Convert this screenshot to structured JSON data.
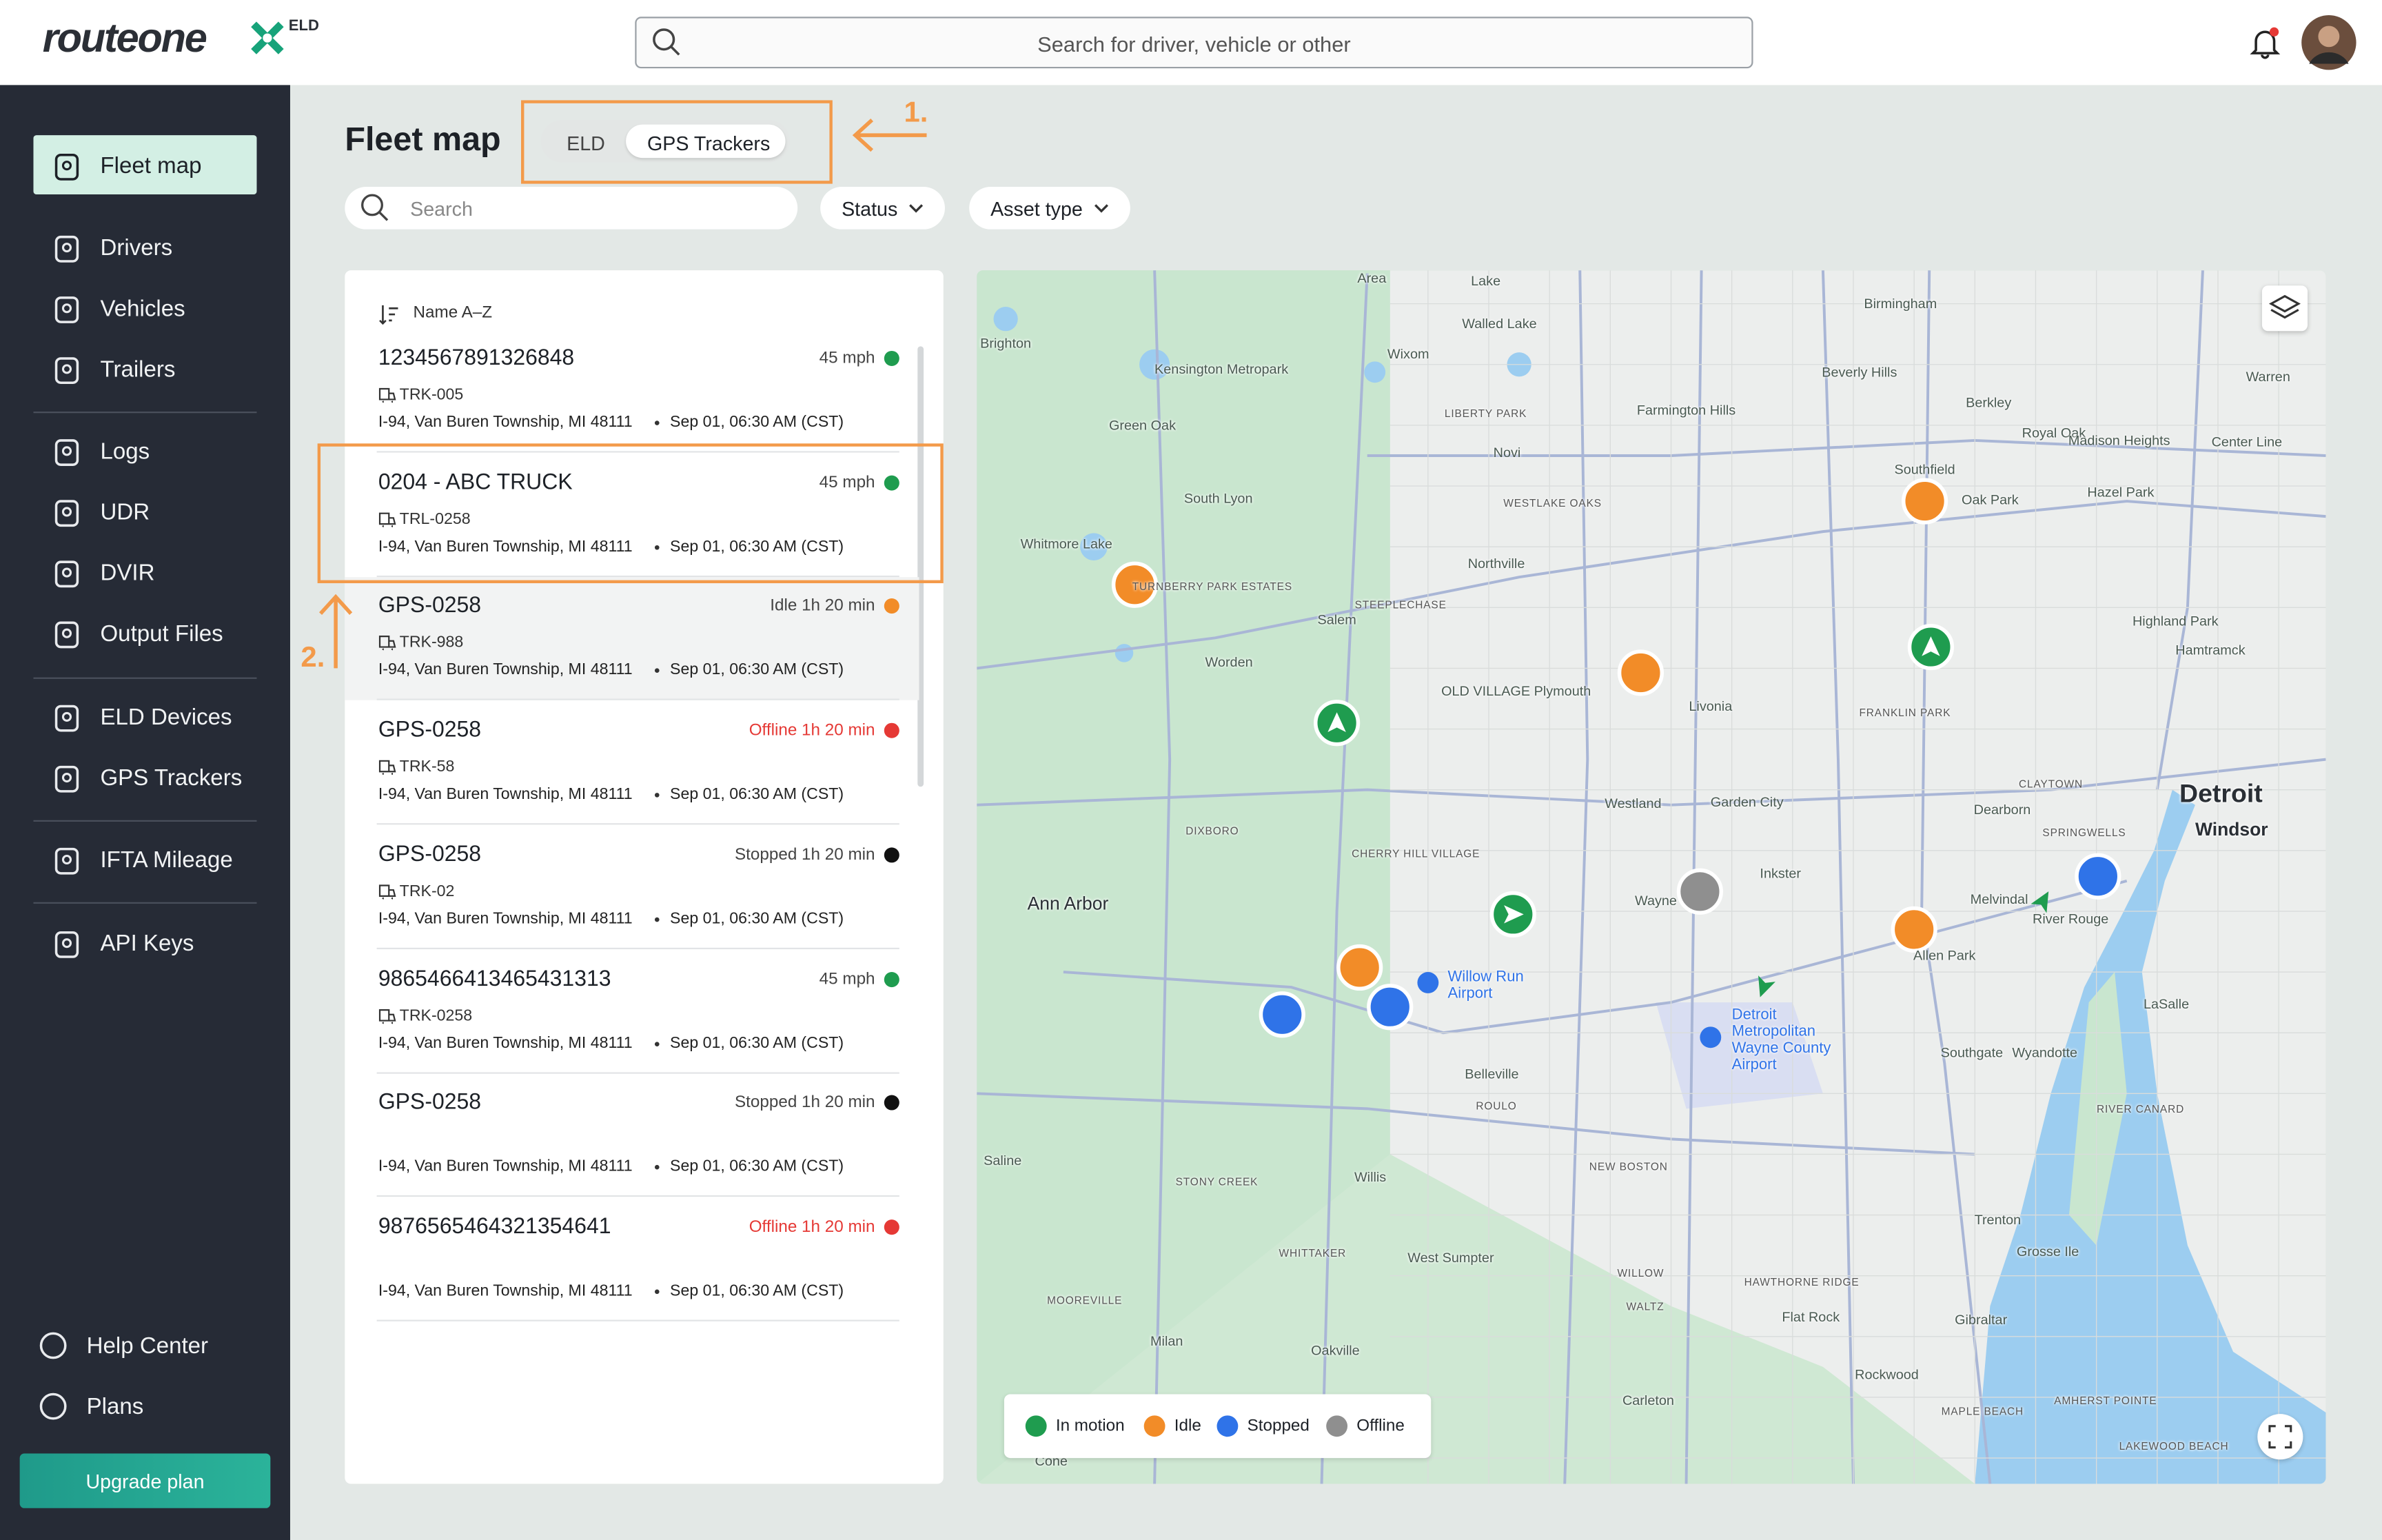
{
  "header": {
    "logo": "routeone",
    "logo_badge": "ELD",
    "search_placeholder": "Search for driver, vehicle or other"
  },
  "sidebar": {
    "nav_groups": [
      [
        "Fleet map",
        "Drivers",
        "Vehicles",
        "Trailers"
      ],
      [
        "Logs",
        "UDR",
        "DVIR",
        "Output Files"
      ],
      [
        "ELD Devices",
        "GPS Trackers"
      ],
      [
        "IFTA Mileage"
      ],
      [
        "API Keys"
      ]
    ],
    "footer": [
      "Help Center",
      "Plans"
    ],
    "upgrade_button": "Upgrade plan"
  },
  "page": {
    "title": "Fleet map",
    "tabs": [
      "ELD",
      "GPS Trackers"
    ],
    "search_placeholder": "Search",
    "filters": [
      "Status",
      "Asset type"
    ]
  },
  "annotations": [
    "1.",
    "2."
  ],
  "list": {
    "sort": "Name A–Z",
    "items": [
      {
        "name": "1234567891326848",
        "status": "45 mph",
        "dot": "#1f9c4f",
        "asset": "TRK-005",
        "address": "I-94, Van Buren Township, MI 48111",
        "time": "Sep 01, 06:30 AM (CST)"
      },
      {
        "name": "0204 - ABC TRUCK",
        "status": "45 mph",
        "dot": "#1f9c4f",
        "asset": "TRL-0258",
        "address": "I-94, Van Buren Township, MI 48111",
        "time": "Sep 01, 06:30 AM (CST)"
      },
      {
        "name": "GPS-0258",
        "status": "Idle 1h 20 min",
        "dot": "#f28c28",
        "asset": "TRK-988",
        "address": "I-94, Van Buren Township, MI 48111",
        "time": "Sep 01, 06:30 AM (CST)"
      },
      {
        "name": "GPS-0258",
        "status": "Offline 1h 20 min",
        "dot": "#e53935",
        "status_color": "#e53935",
        "asset": "TRK-58",
        "address": "I-94, Van Buren Township, MI 48111",
        "time": "Sep 01, 06:30 AM (CST)"
      },
      {
        "name": "GPS-0258",
        "status": "Stopped 1h 20 min",
        "dot": "#111111",
        "asset": "TRK-02",
        "address": "I-94, Van Buren Township, MI 48111",
        "time": "Sep 01, 06:30 AM (CST)"
      },
      {
        "name": "9865466413465431313",
        "status": "45 mph",
        "dot": "#1f9c4f",
        "asset": "TRK-0258",
        "address": "I-94, Van Buren Township, MI 48111",
        "time": "Sep 01, 06:30 AM (CST)"
      },
      {
        "name": "GPS-0258",
        "status": "Stopped 1h 20 min",
        "dot": "#111111",
        "address": "I-94, Van Buren Township, MI 48111",
        "time": "Sep 01, 06:30 AM (CST)"
      },
      {
        "name": "9876565464321354641",
        "status": "Offline 1h 20 min",
        "dot": "#e53935",
        "status_color": "#e53935",
        "address": "I-94, Van Buren Township, MI 48111",
        "time": "Sep 01, 06:30 AM (CST)"
      }
    ]
  },
  "map": {
    "labels": [
      "Area",
      "Lake",
      "Walled Lake",
      "Wixom",
      "Kensington Metropark",
      "Brighton",
      "Birmingham",
      "Beverly Hills",
      "Warren",
      "Green Oak",
      "LIBERTY PARK",
      "Farmington Hills",
      "Novi",
      "Berkley",
      "Royal Oak",
      "Madison Heights",
      "Center Line",
      "South Lyon",
      "Whitmore Lake",
      "WESTLAKE OAKS",
      "Southfield",
      "Oak Park",
      "Hazel Park",
      "Northville",
      "TURNBERRY PARK ESTATES",
      "STEEPLECHASE",
      "Salem",
      "Highland Park",
      "Hamtramck",
      "Worden",
      "OLD VILLAGE Plymouth",
      "Livonia",
      "FRANKLIN PARK",
      "DIXBORO",
      "Westland",
      "Garden City",
      "CLAYTOWN",
      "Dearborn",
      "Detroit",
      "Windsor",
      "SPRINGWELLS",
      "CHERRY HILL VILLAGE",
      "Inkster",
      "Wayne",
      "Ann Arbor",
      "Melvindal",
      "River Rouge",
      "Allen Park",
      "Willow Run Airport",
      "Detroit Metropolitan Wayne County Airport",
      "LaSalle",
      "Southgate",
      "Wyandotte",
      "Belleville",
      "ROULO",
      "RIVER CANARD",
      "Saline",
      "NEW BOSTON",
      "Willis",
      "STONY CREEK",
      "Trenton",
      "Grosse Ile",
      "WHITTAKER",
      "West Sumpter",
      "WILLOW",
      "HAWTHORNE RIDGE",
      "MOOREVILLE",
      "WALTZ",
      "Gibraltar",
      "Flat Rock",
      "Milan",
      "Oakville",
      "Rockwood",
      "Carleton",
      "AMHERST POINTE",
      "MAPLE BEACH",
      "LAKEWOOD BEACH",
      "Cone"
    ],
    "legend": [
      {
        "label": "In motion",
        "color": "#1f9c4f"
      },
      {
        "label": "Idle",
        "color": "#f28c28"
      },
      {
        "label": "Stopped",
        "color": "#2f73e8"
      },
      {
        "label": "Offline",
        "color": "#8f8f8f"
      }
    ]
  }
}
